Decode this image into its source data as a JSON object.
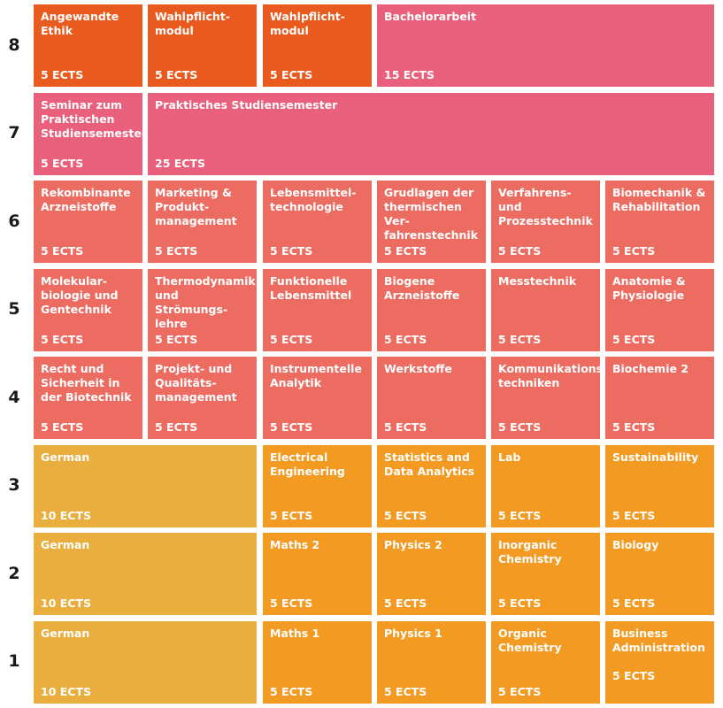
{
  "palette": {
    "orange_dark": "#e85a1e",
    "pink": "#e8607b",
    "coral": "#ec6c61",
    "mustard": "#e9ae3e",
    "orange": "#f39a22"
  },
  "semesters": [
    {
      "label": "8",
      "modules": [
        {
          "title": "Angewandte\nEthik",
          "ects": "5 ECTS",
          "color": "orange_dark",
          "span": 1
        },
        {
          "title": "Wahlpflicht-\nmodul",
          "ects": "5 ECTS",
          "color": "orange_dark",
          "span": 1
        },
        {
          "title": "Wahlpflicht-\nmodul",
          "ects": "5 ECTS",
          "color": "orange_dark",
          "span": 1
        },
        {
          "title": "Bachelorarbeit",
          "ects": "15 ECTS",
          "color": "pink",
          "span": 3
        }
      ]
    },
    {
      "label": "7",
      "modules": [
        {
          "title": "Seminar zum\nPraktischen\nStudiensemester",
          "ects": "5 ECTS",
          "color": "pink",
          "span": 1
        },
        {
          "title": "Praktisches Studiensemester",
          "ects": "25 ECTS",
          "color": "pink",
          "span": 5
        }
      ]
    },
    {
      "label": "6",
      "modules": [
        {
          "title": "Rekombinante\nArzneistoffe",
          "ects": "5 ECTS",
          "color": "coral",
          "span": 1
        },
        {
          "title": "Marketing &\nProdukt-\nmanagement",
          "ects": "5 ECTS",
          "color": "coral",
          "span": 1
        },
        {
          "title": "Lebensmittel-\ntechnologie",
          "ects": "5 ECTS",
          "color": "coral",
          "span": 1
        },
        {
          "title": "Grudlagen der\nthermischen Ver-\nfahrenstechnik",
          "ects": "5 ECTS",
          "color": "coral",
          "span": 1
        },
        {
          "title": "Verfahrens- und\nProzesstechnik",
          "ects": "5 ECTS",
          "color": "coral",
          "span": 1
        },
        {
          "title": "Biomechanik &\nRehabilitation",
          "ects": "5 ECTS",
          "color": "coral",
          "span": 1
        }
      ]
    },
    {
      "label": "5",
      "modules": [
        {
          "title": "Molekular-\nbiologie und\nGentechnik",
          "ects": "5 ECTS",
          "color": "coral",
          "span": 1
        },
        {
          "title": "Thermodynamik\nund Strömungs-\nlehre",
          "ects": "5 ECTS",
          "color": "coral",
          "span": 1
        },
        {
          "title": "Funktionelle\nLebensmittel",
          "ects": "5 ECTS",
          "color": "coral",
          "span": 1
        },
        {
          "title": "Biogene\nArzneistoffe",
          "ects": "5 ECTS",
          "color": "coral",
          "span": 1
        },
        {
          "title": "Messtechnik",
          "ects": "5 ECTS",
          "color": "coral",
          "span": 1
        },
        {
          "title": "Anatomie &\nPhysiologie",
          "ects": "5 ECTS",
          "color": "coral",
          "span": 1
        }
      ]
    },
    {
      "label": "4",
      "modules": [
        {
          "title": "Recht und\nSicherheit in\nder Biotechnik",
          "ects": "5 ECTS",
          "color": "coral",
          "span": 1
        },
        {
          "title": "Projekt- und\nQualitäts-\nmanagement",
          "ects": "5 ECTS",
          "color": "coral",
          "span": 1
        },
        {
          "title": "Instrumentelle\nAnalytik",
          "ects": "5 ECTS",
          "color": "coral",
          "span": 1
        },
        {
          "title": "Werkstoffe",
          "ects": "5 ECTS",
          "color": "coral",
          "span": 1
        },
        {
          "title": "Kommunikations-\ntechniken",
          "ects": "5 ECTS",
          "color": "coral",
          "span": 1
        },
        {
          "title": "Biochemie 2",
          "ects": "5 ECTS",
          "color": "coral",
          "span": 1
        }
      ]
    },
    {
      "label": "3",
      "modules": [
        {
          "title": "German",
          "ects": "10 ECTS",
          "color": "mustard",
          "span": 2
        },
        {
          "title": "Electrical\nEngineering",
          "ects": "5 ECTS",
          "color": "orange",
          "span": 1
        },
        {
          "title": "Statistics and\nData Analytics",
          "ects": "5 ECTS",
          "color": "orange",
          "span": 1
        },
        {
          "title": "Lab",
          "ects": "5 ECTS",
          "color": "orange",
          "span": 1
        },
        {
          "title": "Sustainability",
          "ects": "5 ECTS",
          "color": "orange",
          "span": 1
        }
      ]
    },
    {
      "label": "2",
      "modules": [
        {
          "title": "German",
          "ects": "10 ECTS",
          "color": "mustard",
          "span": 2
        },
        {
          "title": "Maths 2",
          "ects": "5 ECTS",
          "color": "orange",
          "span": 1
        },
        {
          "title": "Physics 2",
          "ects": "5 ECTS",
          "color": "orange",
          "span": 1
        },
        {
          "title": "Inorganic\nChemistry",
          "ects": "5 ECTS",
          "color": "orange",
          "span": 1
        },
        {
          "title": "Biology",
          "ects": "5 ECTS",
          "color": "orange",
          "span": 1
        }
      ]
    },
    {
      "label": "1",
      "modules": [
        {
          "title": "German",
          "ects": "10 ECTS",
          "color": "mustard",
          "span": 2
        },
        {
          "title": "Maths 1",
          "ects": "5 ECTS",
          "color": "orange",
          "span": 1
        },
        {
          "title": "Physics 1",
          "ects": "5 ECTS",
          "color": "orange",
          "span": 1
        },
        {
          "title": "Organic\nChemistry",
          "ects": "5 ECTS",
          "color": "orange",
          "span": 1
        },
        {
          "title": "Business\nAdministration",
          "ects": "5 ECTS",
          "color": "orange",
          "span": 1,
          "ects_raised": true
        }
      ]
    }
  ]
}
